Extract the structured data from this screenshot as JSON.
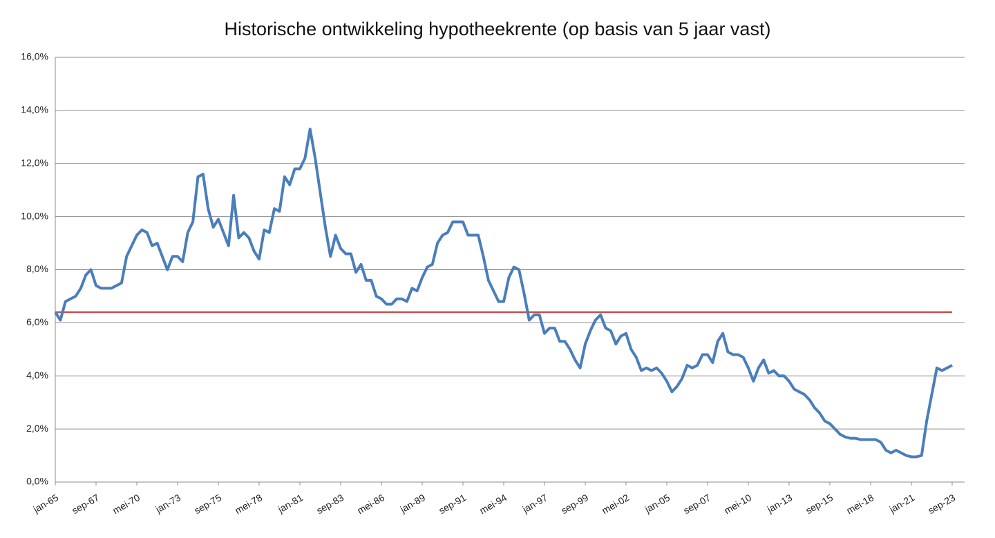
{
  "chart_data": {
    "type": "line",
    "title": "Historische ontwikkeling hypotheekrente (op basis van 5 jaar vast)",
    "categories": [
      "jan-65",
      null,
      null,
      null,
      null,
      null,
      null,
      null,
      "sep-67",
      null,
      null,
      null,
      null,
      null,
      null,
      null,
      "mei-70",
      null,
      null,
      null,
      null,
      null,
      null,
      null,
      "jan-73",
      null,
      null,
      null,
      null,
      null,
      null,
      null,
      "sep-75",
      null,
      null,
      null,
      null,
      null,
      null,
      null,
      "mei-78",
      null,
      null,
      null,
      null,
      null,
      null,
      null,
      "jan-81",
      null,
      null,
      null,
      null,
      null,
      null,
      null,
      "sep-83",
      null,
      null,
      null,
      null,
      null,
      null,
      null,
      "mei-86",
      null,
      null,
      null,
      null,
      null,
      null,
      null,
      "jan-89",
      null,
      null,
      null,
      null,
      null,
      null,
      null,
      "sep-91",
      null,
      null,
      null,
      null,
      null,
      null,
      null,
      "mei-94",
      null,
      null,
      null,
      null,
      null,
      null,
      null,
      "jan-97",
      null,
      null,
      null,
      null,
      null,
      null,
      null,
      "sep-99",
      null,
      null,
      null,
      null,
      null,
      null,
      null,
      "mei-02",
      null,
      null,
      null,
      null,
      null,
      null,
      null,
      "jan-05",
      null,
      null,
      null,
      null,
      null,
      null,
      null,
      "sep-07",
      null,
      null,
      null,
      null,
      null,
      null,
      null,
      "mei-10",
      null,
      null,
      null,
      null,
      null,
      null,
      null,
      "jan-13",
      null,
      null,
      null,
      null,
      null,
      null,
      null,
      "sep-15",
      null,
      null,
      null,
      null,
      null,
      null,
      null,
      "mei-18",
      null,
      null,
      null,
      null,
      null,
      null,
      null,
      "jan-21",
      null,
      null,
      null,
      null,
      null,
      null,
      null,
      "sep-23"
    ],
    "series": [
      {
        "color": "#4a7ebb",
        "values": [
          6.4,
          6.1,
          6.8,
          6.9,
          7.0,
          7.3,
          7.8,
          8.0,
          7.4,
          7.3,
          7.3,
          7.3,
          7.4,
          7.5,
          8.5,
          8.9,
          9.3,
          9.5,
          9.4,
          8.9,
          9.0,
          8.5,
          8.0,
          8.5,
          8.5,
          8.3,
          9.4,
          9.8,
          11.5,
          11.6,
          10.3,
          9.6,
          9.9,
          9.4,
          8.9,
          10.8,
          9.2,
          9.4,
          9.2,
          8.7,
          8.4,
          9.5,
          9.4,
          10.3,
          10.2,
          11.5,
          11.2,
          11.8,
          11.8,
          12.2,
          13.3,
          12.2,
          10.9,
          9.6,
          8.5,
          9.3,
          8.8,
          8.6,
          8.6,
          7.9,
          8.2,
          7.6,
          7.6,
          7.0,
          6.9,
          6.7,
          6.7,
          6.9,
          6.9,
          6.8,
          7.3,
          7.2,
          7.7,
          8.1,
          8.2,
          9.0,
          9.3,
          9.4,
          9.8,
          9.8,
          9.8,
          9.3,
          9.3,
          9.3,
          8.5,
          7.6,
          7.2,
          6.8,
          6.8,
          7.7,
          8.1,
          8.0,
          7.1,
          6.1,
          6.3,
          6.3,
          5.6,
          5.8,
          5.8,
          5.3,
          5.3,
          5.0,
          4.6,
          4.3,
          5.2,
          5.7,
          6.1,
          6.3,
          5.8,
          5.7,
          5.2,
          5.5,
          5.6,
          5.0,
          4.7,
          4.2,
          4.3,
          4.2,
          4.3,
          4.1,
          3.8,
          3.4,
          3.6,
          3.9,
          4.4,
          4.3,
          4.4,
          4.8,
          4.8,
          4.5,
          5.3,
          5.6,
          4.9,
          4.8,
          4.8,
          4.7,
          4.3,
          3.8,
          4.3,
          4.6,
          4.1,
          4.2,
          4.0,
          4.0,
          3.8,
          3.5,
          3.4,
          3.3,
          3.1,
          2.8,
          2.6,
          2.3,
          2.2,
          2.0,
          1.8,
          1.7,
          1.65,
          1.65,
          1.6,
          1.6,
          1.6,
          1.6,
          1.5,
          1.2,
          1.1,
          1.2,
          1.1,
          1.0,
          0.95,
          0.95,
          1.0,
          2.3,
          3.3,
          4.3,
          4.2,
          4.3,
          4.4
        ]
      }
    ],
    "reference_line": {
      "value": 6.4,
      "color": "#c0504d"
    },
    "ylim": [
      0,
      16
    ],
    "yticks": [
      {
        "value": 0,
        "label": "0,0%"
      },
      {
        "value": 2,
        "label": "2,0%"
      },
      {
        "value": 4,
        "label": "4,0%"
      },
      {
        "value": 6,
        "label": "6,0%"
      },
      {
        "value": 8,
        "label": "8,0%"
      },
      {
        "value": 10,
        "label": "10,0%"
      },
      {
        "value": 12,
        "label": "12,0%"
      },
      {
        "value": 14,
        "label": "14,0%"
      },
      {
        "value": 16,
        "label": "16,0%"
      }
    ],
    "grid": true
  }
}
